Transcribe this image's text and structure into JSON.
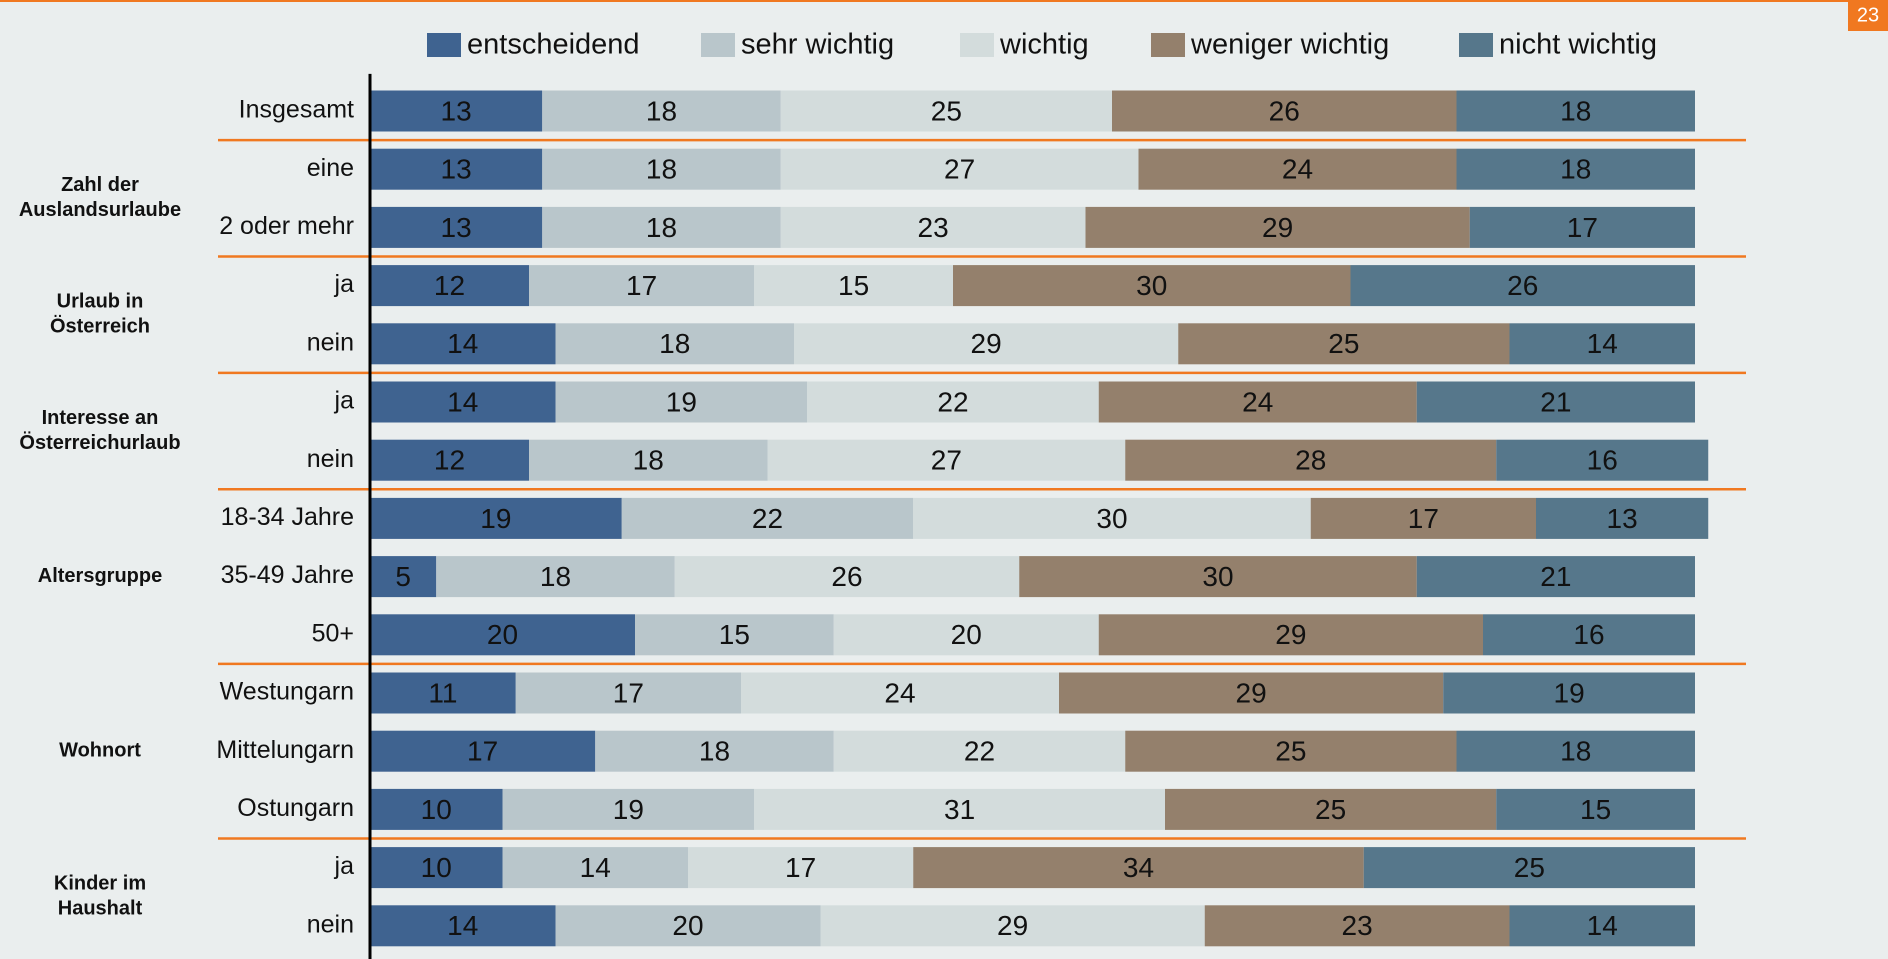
{
  "page_number": "23",
  "chart_data": {
    "type": "stacked_bar_horizontal",
    "groups": [
      {
        "categories": [
          "Insgesamt"
        ]
      },
      {
        "label": [
          "Zahl der",
          "Auslandsurlaube"
        ],
        "categories": [
          "eine",
          "2 oder mehr"
        ]
      },
      {
        "label": [
          "Urlaub in",
          "Österreich"
        ],
        "categories": [
          "ja",
          "nein"
        ]
      },
      {
        "label": [
          "Interesse an",
          "Österreichurlaub"
        ],
        "categories": [
          "ja",
          "nein"
        ]
      },
      {
        "label": [
          "Altersgruppe"
        ],
        "categories": [
          "18-34 Jahre",
          "35-49 Jahre",
          "50+"
        ]
      },
      {
        "label": [
          "Wohnort"
        ],
        "categories": [
          "Westungarn",
          "Mittelungarn",
          "Ostungarn"
        ]
      },
      {
        "label": [
          "Kinder im",
          "Haushalt"
        ],
        "categories": [
          "ja",
          "nein"
        ]
      }
    ],
    "xlim": [
      0,
      100
    ],
    "series": [
      {
        "name": "entscheidend",
        "color": "#3f6390",
        "values": [
          13,
          13,
          13,
          12,
          14,
          14,
          12,
          19,
          5,
          20,
          11,
          17,
          10,
          10,
          14
        ]
      },
      {
        "name": "sehr wichtig",
        "color": "#b9c6cb",
        "values": [
          18,
          18,
          18,
          17,
          18,
          19,
          18,
          22,
          18,
          15,
          17,
          18,
          19,
          14,
          20
        ]
      },
      {
        "name": "wichtig",
        "color": "#d3dcdc",
        "values": [
          25,
          27,
          23,
          15,
          29,
          22,
          27,
          30,
          26,
          20,
          24,
          22,
          31,
          17,
          29
        ]
      },
      {
        "name": "weniger wichtig",
        "color": "#94806c",
        "values": [
          26,
          24,
          29,
          30,
          25,
          24,
          28,
          17,
          30,
          29,
          29,
          25,
          25,
          34,
          23
        ]
      },
      {
        "name": "nicht wichtig",
        "color": "#56778b",
        "values": [
          18,
          18,
          17,
          26,
          14,
          21,
          16,
          13,
          21,
          16,
          19,
          18,
          15,
          25,
          14
        ]
      }
    ],
    "legend": "top"
  }
}
